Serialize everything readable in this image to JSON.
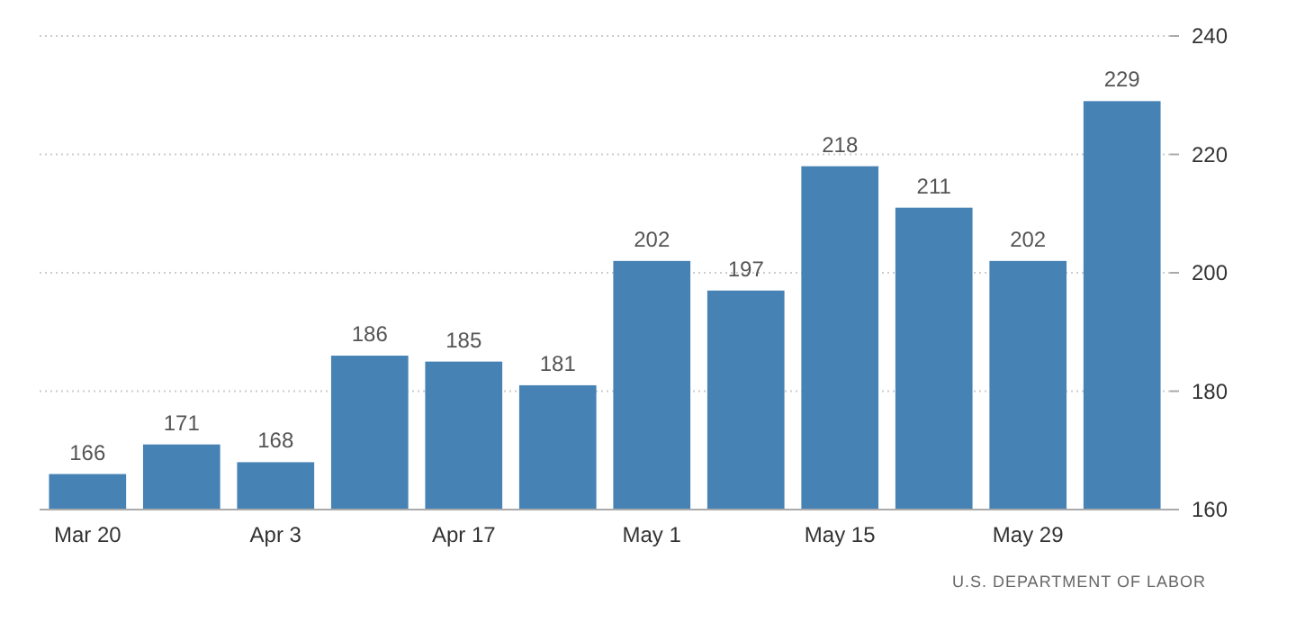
{
  "chart_data": {
    "type": "bar",
    "categories": [
      "Mar 20",
      null,
      "Apr 3",
      null,
      "Apr 17",
      null,
      "May 1",
      null,
      "May 15",
      null,
      "May 29",
      null
    ],
    "values": [
      166,
      171,
      168,
      186,
      185,
      181,
      202,
      197,
      218,
      211,
      202,
      229
    ],
    "color": "#4682b4",
    "ylim": [
      160,
      240
    ],
    "yticks": [
      160,
      180,
      200,
      220,
      240
    ],
    "grid": "y",
    "data_labels": true,
    "annotations": [
      "U.S. DEPARTMENT OF LABOR"
    ]
  }
}
